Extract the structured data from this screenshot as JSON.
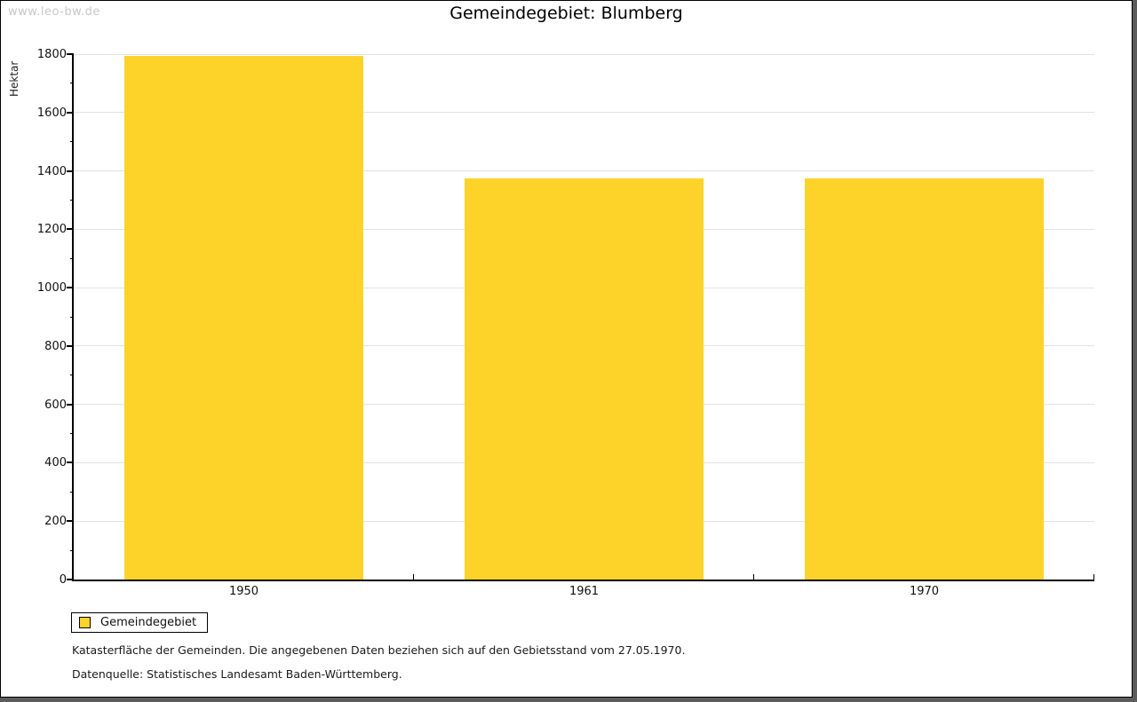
{
  "page": {
    "watermark": "www.leo-bw.de"
  },
  "chart_data": {
    "type": "bar",
    "title": "Gemeindegebiet: Blumberg",
    "ylabel": "Hektar",
    "xlabel": "",
    "categories": [
      "1950",
      "1961",
      "1970"
    ],
    "series": [
      {
        "name": "Gemeindegebiet",
        "values": [
          1793,
          1373,
          1373
        ]
      }
    ],
    "ylim": [
      0,
      1800
    ],
    "y_ticks": [
      0,
      200,
      400,
      600,
      800,
      1000,
      1200,
      1400,
      1600,
      1800
    ],
    "y_minor_step": 100,
    "grid": true,
    "bar_color": "#fdd329",
    "legend_position": "bottom-left",
    "legend_entries": [
      "Gemeindegebiet"
    ]
  },
  "notes": {
    "line1": "Katasterfläche der Gemeinden. Die angegebenen Daten beziehen sich auf den Gebietsstand vom 27.05.1970.",
    "line2": "Datenquelle: Statistisches Landesamt Baden-Württemberg."
  }
}
